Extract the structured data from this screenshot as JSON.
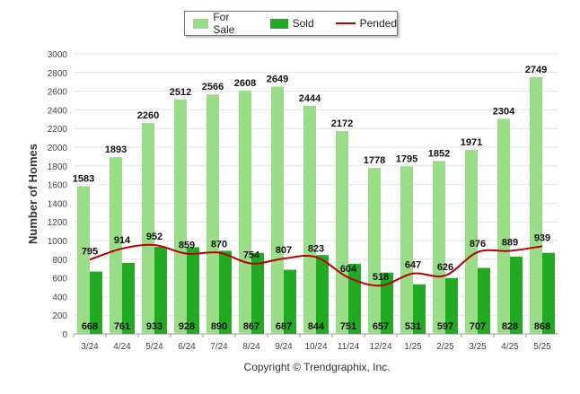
{
  "chart_data": {
    "type": "bar",
    "title": "",
    "ylabel": "Number of Homes",
    "xlabel": "",
    "ylim": [
      0,
      3000
    ],
    "yticks": [
      0,
      200,
      400,
      600,
      800,
      1000,
      1200,
      1400,
      1600,
      1800,
      2000,
      2200,
      2400,
      2600,
      2800,
      3000
    ],
    "categories": [
      "3/24",
      "4/24",
      "5/24",
      "6/24",
      "7/24",
      "8/24",
      "9/24",
      "10/24",
      "11/24",
      "12/24",
      "1/25",
      "2/25",
      "3/25",
      "4/25",
      "5/25"
    ],
    "series": [
      {
        "name": "For Sale",
        "kind": "bar",
        "color": "#99dd88",
        "values": [
          1583,
          1893,
          2260,
          2512,
          2566,
          2608,
          2649,
          2444,
          2172,
          1778,
          1795,
          1852,
          1971,
          2304,
          2749
        ]
      },
      {
        "name": "Sold",
        "kind": "bar",
        "color": "#22aa22",
        "values": [
          668,
          761,
          933,
          928,
          890,
          867,
          687,
          844,
          751,
          657,
          531,
          597,
          707,
          828,
          868
        ]
      },
      {
        "name": "Pended",
        "kind": "line",
        "color": "#bb0000",
        "values": [
          795,
          914,
          952,
          859,
          870,
          754,
          807,
          823,
          604,
          518,
          647,
          626,
          876,
          889,
          939
        ]
      }
    ],
    "grid": true,
    "legend_position": "top-center"
  },
  "footer": {
    "copyright": "Copyright © Trendgraphix, Inc."
  }
}
